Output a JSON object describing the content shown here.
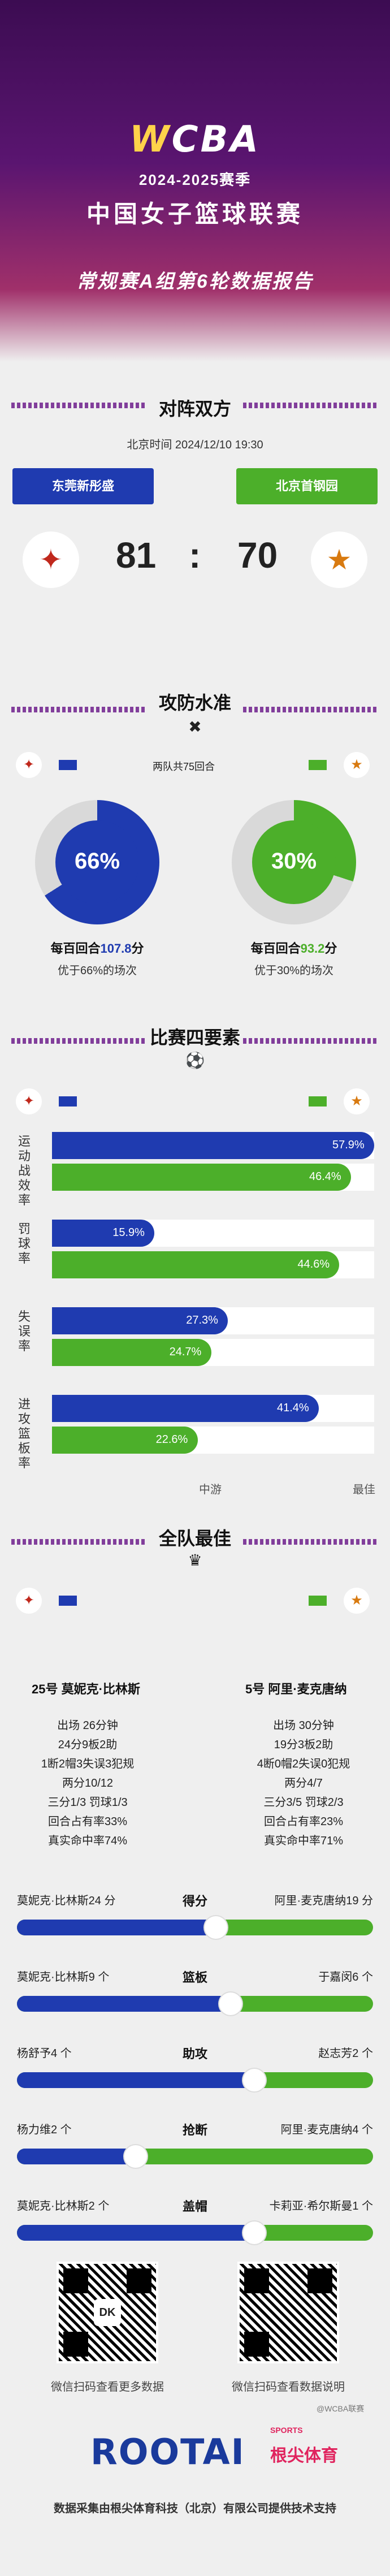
{
  "hero": {
    "logo_w": "W",
    "logo_rest": "CBA",
    "season": "2024-2025赛季",
    "league": "中国女子篮球联赛",
    "report": "常规赛A组第6轮数据报告"
  },
  "matchup": {
    "title": "对阵双方",
    "time": "北京时间 2024/12/10 19:30",
    "team_a": "东莞新彤盛",
    "team_b": "北京首钢园",
    "score_a": "81",
    "separator": ":",
    "score_b": "70"
  },
  "efficiency": {
    "title": "攻防水准",
    "note": "两队共75回合",
    "a_pct": "66%",
    "a_text_pre": "每百回合",
    "a_value": "107.8",
    "a_text_post": "分",
    "a_sub": "优于66%的场次",
    "b_pct": "30%",
    "b_text_pre": "每百回合",
    "b_value": "93.2",
    "b_text_post": "分",
    "b_sub": "优于30%的场次"
  },
  "four_factors": {
    "title": "比赛四要素",
    "rows": [
      {
        "label": "运动战效率",
        "a": 57.9,
        "a_text": "57.9%",
        "b": 46.4,
        "b_text": "46.4%"
      },
      {
        "label": "罚球率",
        "a": 15.9,
        "a_text": "15.9%",
        "b": 44.6,
        "b_text": "44.6%"
      },
      {
        "label": "失误率",
        "a": 27.3,
        "a_text": "27.3%",
        "b": 24.7,
        "b_text": "24.7%"
      },
      {
        "label": "进攻篮板率",
        "a": 41.4,
        "a_text": "41.4%",
        "b": 22.6,
        "b_text": "22.6%"
      }
    ],
    "scale_mid": "中游",
    "scale_best": "最佳"
  },
  "best": {
    "title": "全队最佳",
    "a_name": "25号 莫妮克·比林斯",
    "b_name": "5号 阿里·麦克唐纳",
    "a_stats": [
      "出场 26分钟",
      "24分9板2助",
      "1断2帽3失误3犯规",
      "两分10/12",
      "三分1/3 罚球1/3",
      "回合占有率33%",
      "真实命中率74%"
    ],
    "b_stats": [
      "出场 30分钟",
      "19分3板2助",
      "4断0帽2失误0犯规",
      "两分4/7",
      "三分3/5 罚球2/3",
      "回合占有率23%",
      "真实命中率71%"
    ],
    "compare": [
      {
        "title": "得分",
        "a_text": "莫妮克·比林斯24 分",
        "b_text": "阿里·麦克唐纳19 分",
        "a_val": 24,
        "b_val": 19
      },
      {
        "title": "篮板",
        "a_text": "莫妮克·比林斯9 个",
        "b_text": "于嘉闵6 个",
        "a_val": 9,
        "b_val": 6
      },
      {
        "title": "助攻",
        "a_text": "杨舒予4 个",
        "b_text": "赵志芳2 个",
        "a_val": 4,
        "b_val": 2
      },
      {
        "title": "抢断",
        "a_text": "杨力维2 个",
        "b_text": "阿里·麦克唐纳4 个",
        "a_val": 2,
        "b_val": 4
      },
      {
        "title": "盖帽",
        "a_text": "莫妮克·比林斯2 个",
        "b_text": "卡莉亚·希尔斯曼1 个",
        "a_val": 2,
        "b_val": 1
      }
    ]
  },
  "footer": {
    "qr_left_caption": "微信扫码查看更多数据",
    "qr_right_caption": "微信扫码查看数据说明",
    "qr_left_center": "DK",
    "watermark": "@WCBA联赛",
    "brand": "ROOTAI",
    "brand_sports": "SPORTS",
    "brand_cn": "根尖体育",
    "credit": "数据采集由根尖体育科技（北京）有限公司提供技术支持"
  },
  "colors": {
    "team_a": "#1f3bb0",
    "team_b": "#4caf2a",
    "accent": "#6e1f8c"
  },
  "icons": [
    "phoenix-logo-icon",
    "eagle-logo-icon",
    "shield-crossed-icon",
    "player-dribble-icon",
    "trophy-icon"
  ]
}
